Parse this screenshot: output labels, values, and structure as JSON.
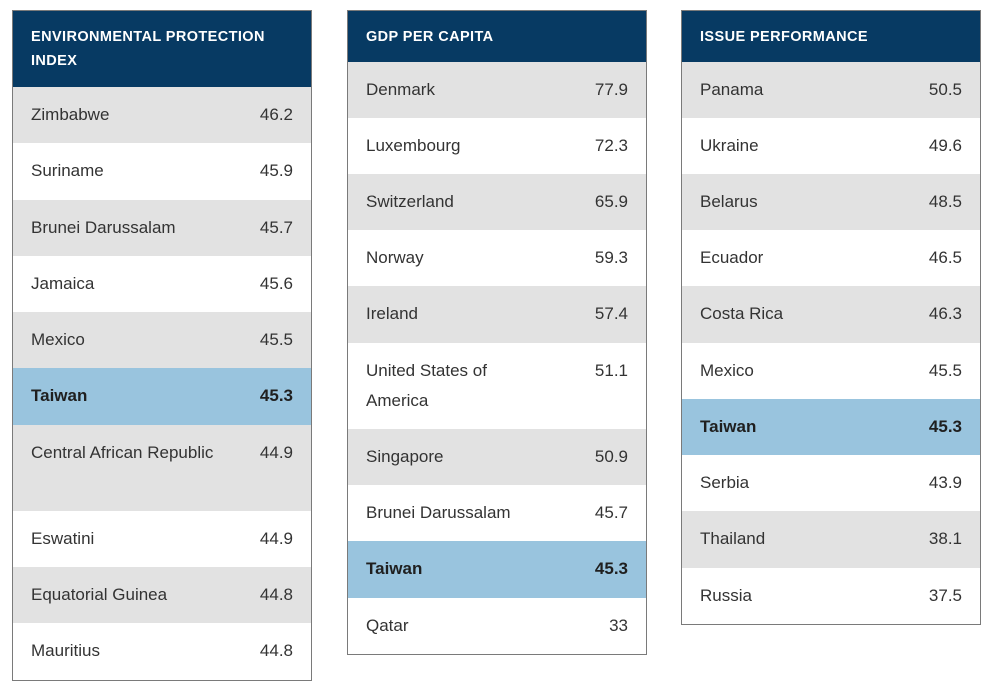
{
  "tables": [
    {
      "title": "ENVIRONMENTAL PROTECTION INDEX",
      "rows": [
        {
          "country": "Zimbabwe",
          "score": "46.2"
        },
        {
          "country": "Suriname",
          "score": "45.9"
        },
        {
          "country": "Brunei Darussalam",
          "score": "45.7"
        },
        {
          "country": "Jamaica",
          "score": "45.6"
        },
        {
          "country": "Mexico",
          "score": "45.5"
        },
        {
          "country": "Taiwan",
          "score": "45.3",
          "highlight": true
        },
        {
          "country": "Central African Republic",
          "score": "44.9"
        },
        {
          "country": "Eswatini",
          "score": "44.9"
        },
        {
          "country": "Equatorial Guinea",
          "score": "44.8"
        },
        {
          "country": "Mauritius",
          "score": "44.8"
        }
      ]
    },
    {
      "title": "GDP PER CAPITA",
      "rows": [
        {
          "country": "Denmark",
          "score": "77.9"
        },
        {
          "country": "Luxembourg",
          "score": "72.3"
        },
        {
          "country": "Switzerland",
          "score": "65.9"
        },
        {
          "country": "Norway",
          "score": "59.3"
        },
        {
          "country": "Ireland",
          "score": "57.4"
        },
        {
          "country": "United States of America",
          "score": "51.1"
        },
        {
          "country": "Singapore",
          "score": "50.9"
        },
        {
          "country": "Brunei Darussalam",
          "score": "45.7"
        },
        {
          "country": "Taiwan",
          "score": "45.3",
          "highlight": true
        },
        {
          "country": "Qatar",
          "score": "33"
        }
      ]
    },
    {
      "title": "ISSUE PERFORMANCE",
      "rows": [
        {
          "country": "Panama",
          "score": "50.5"
        },
        {
          "country": "Ukraine",
          "score": "49.6"
        },
        {
          "country": "Belarus",
          "score": "48.5"
        },
        {
          "country": "Ecuador",
          "score": "46.5"
        },
        {
          "country": "Costa Rica",
          "score": "46.3"
        },
        {
          "country": "Mexico",
          "score": "45.5"
        },
        {
          "country": "Taiwan",
          "score": "45.3",
          "highlight": true
        },
        {
          "country": "Serbia",
          "score": "43.9"
        },
        {
          "country": "Thailand",
          "score": "38.1"
        },
        {
          "country": "Russia",
          "score": "37.5"
        }
      ]
    }
  ],
  "colors": {
    "header_bg": "#073a63",
    "header_text": "#ffffff",
    "row_odd": "#e2e2e2",
    "row_even": "#ffffff",
    "highlight": "#99c4de"
  },
  "chart_data": [
    {
      "type": "table",
      "title": "ENVIRONMENTAL PROTECTION INDEX",
      "categories": [
        "Zimbabwe",
        "Suriname",
        "Brunei Darussalam",
        "Jamaica",
        "Mexico",
        "Taiwan",
        "Central African Republic",
        "Eswatini",
        "Equatorial Guinea",
        "Mauritius"
      ],
      "values": [
        46.2,
        45.9,
        45.7,
        45.6,
        45.5,
        45.3,
        44.9,
        44.9,
        44.8,
        44.8
      ]
    },
    {
      "type": "table",
      "title": "GDP PER CAPITA",
      "categories": [
        "Denmark",
        "Luxembourg",
        "Switzerland",
        "Norway",
        "Ireland",
        "United States of America",
        "Singapore",
        "Brunei Darussalam",
        "Taiwan",
        "Qatar"
      ],
      "values": [
        77.9,
        72.3,
        65.9,
        59.3,
        57.4,
        51.1,
        50.9,
        45.7,
        45.3,
        33
      ]
    },
    {
      "type": "table",
      "title": "ISSUE PERFORMANCE",
      "categories": [
        "Panama",
        "Ukraine",
        "Belarus",
        "Ecuador",
        "Costa Rica",
        "Mexico",
        "Taiwan",
        "Serbia",
        "Thailand",
        "Russia"
      ],
      "values": [
        50.5,
        49.6,
        48.5,
        46.5,
        46.3,
        45.5,
        45.3,
        43.9,
        38.1,
        37.5
      ]
    }
  ]
}
